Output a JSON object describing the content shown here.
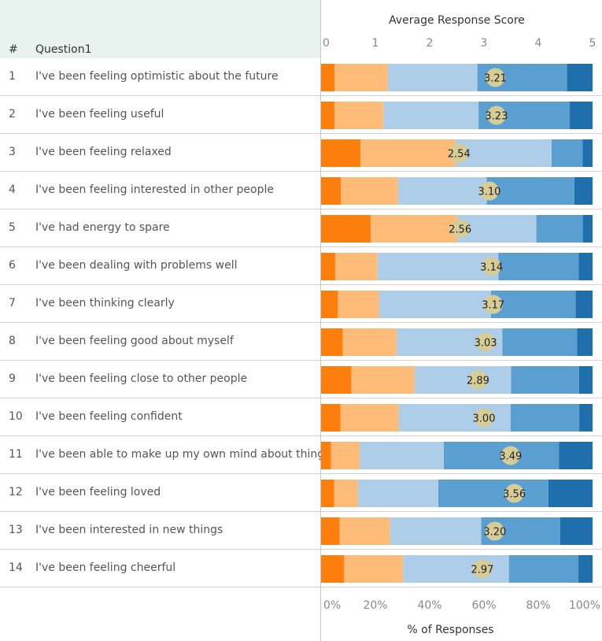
{
  "header": {
    "num_label": "#",
    "question_label": "Question1"
  },
  "chart_data": {
    "type": "bar",
    "stacked": true,
    "orientation": "horizontal",
    "top_axis": {
      "title": "Average Response Score",
      "range": [
        0,
        5
      ],
      "ticks": [
        "0",
        "1",
        "2",
        "3",
        "4",
        "5"
      ]
    },
    "bottom_axis": {
      "title": "% of Responses",
      "range": [
        0,
        100
      ],
      "ticks": [
        "0%",
        "20%",
        "40%",
        "60%",
        "80%",
        "100%"
      ]
    },
    "colors": [
      "#ff7f0e",
      "#ffbb78",
      "#aecde8",
      "#5b9fd0",
      "#1f6fad"
    ],
    "marker_color": "#d6cc96",
    "rows": [
      {
        "num": "1",
        "question": "I've been feeling optimistic about the future",
        "shares": [
          5,
          19.6,
          33,
          33,
          9.4
        ],
        "avg": "3.21",
        "avg_value": 3.21
      },
      {
        "num": "2",
        "question": "I've been feeling useful",
        "shares": [
          5,
          18,
          35,
          33.6,
          8.4
        ],
        "avg": "3.23",
        "avg_value": 3.23
      },
      {
        "num": "3",
        "question": "I've been feeling relaxed",
        "shares": [
          14.5,
          35,
          35.4,
          11.4,
          3.7
        ],
        "avg": "2.54",
        "avg_value": 2.54
      },
      {
        "num": "4",
        "question": "I've been feeling interested in other people",
        "shares": [
          7.3,
          21,
          32.7,
          32.3,
          6.7
        ],
        "avg": "3.10",
        "avg_value": 3.1
      },
      {
        "num": "5",
        "question": "I've had energy to spare",
        "shares": [
          18.3,
          31.8,
          29.2,
          17.1,
          3.6
        ],
        "avg": "2.56",
        "avg_value": 2.56
      },
      {
        "num": "6",
        "question": "I've been dealing with problems well",
        "shares": [
          5.2,
          15.6,
          44.5,
          29.6,
          5.1
        ],
        "avg": "3.14",
        "avg_value": 3.14
      },
      {
        "num": "7",
        "question": "I've been thinking clearly",
        "shares": [
          6.2,
          15.1,
          41.3,
          31.2,
          6.2
        ],
        "avg": "3.17",
        "avg_value": 3.17
      },
      {
        "num": "8",
        "question": "I've been feeling good about myself",
        "shares": [
          8,
          19.8,
          39,
          27.5,
          5.7
        ],
        "avg": "3.03",
        "avg_value": 3.03
      },
      {
        "num": "9",
        "question": "I've been feeling close to other people",
        "shares": [
          11.2,
          23.2,
          35.6,
          25,
          5
        ],
        "avg": "2.89",
        "avg_value": 2.89
      },
      {
        "num": "10",
        "question": "I've been feeling confident",
        "shares": [
          7.1,
          21.5,
          41.2,
          25.3,
          4.9
        ],
        "avg": "3.00",
        "avg_value": 3.0
      },
      {
        "num": "11",
        "question": "I've been able to make up my own mind about things",
        "shares": [
          3.7,
          10.5,
          31,
          42.4,
          12.4
        ],
        "avg": "3.49",
        "avg_value": 3.49
      },
      {
        "num": "12",
        "question": "I've been feeling loved",
        "shares": [
          4.8,
          8.8,
          29.6,
          40.5,
          16.3
        ],
        "avg": "3.56",
        "avg_value": 3.56
      },
      {
        "num": "13",
        "question": "I've been interested in new things",
        "shares": [
          6.8,
          18.6,
          33.6,
          29.1,
          11.9
        ],
        "avg": "3.20",
        "avg_value": 3.2
      },
      {
        "num": "14",
        "question": "I've been feeling cheerful",
        "shares": [
          8.5,
          21.7,
          39,
          25.6,
          5.2
        ],
        "avg": "2.97",
        "avg_value": 2.97
      }
    ]
  }
}
